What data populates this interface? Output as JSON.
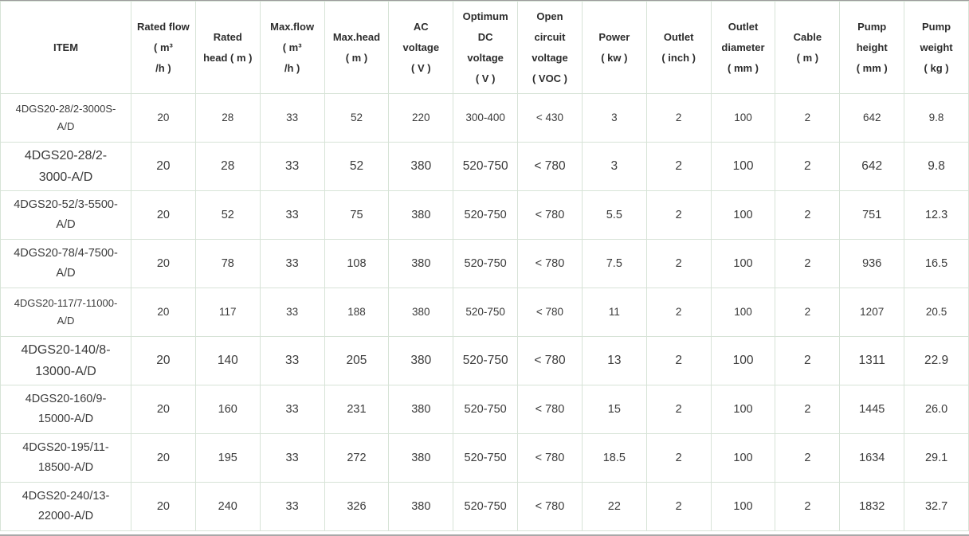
{
  "page": {
    "background_color": "#ffffff",
    "grid_line_color": "#d7e3d7",
    "header_text_color": "#2d2d2d",
    "body_text_color": "#3b3b3b"
  },
  "table": {
    "columns": [
      {
        "id": "item",
        "label_lines": [
          "ITEM"
        ]
      },
      {
        "id": "rated-flow",
        "label_lines": [
          "Rated flow",
          "( m³",
          "/h )"
        ]
      },
      {
        "id": "rated-head",
        "label_lines": [
          "Rated",
          "head ( m )"
        ]
      },
      {
        "id": "max-flow",
        "label_lines": [
          "Max.flow",
          "( m³",
          "/h )"
        ]
      },
      {
        "id": "max-head",
        "label_lines": [
          "Max.head",
          "( m )"
        ]
      },
      {
        "id": "ac-voltage",
        "label_lines": [
          "AC voltage",
          "( V )"
        ]
      },
      {
        "id": "optimum-dc-voltage",
        "label_lines": [
          "Optimum",
          "DC voltage",
          "( V )"
        ]
      },
      {
        "id": "open-circuit-voltage",
        "label_lines": [
          "Open",
          "circuit",
          "voltage",
          "( VOC )"
        ]
      },
      {
        "id": "power",
        "label_lines": [
          "Power",
          "( kw )"
        ]
      },
      {
        "id": "outlet",
        "label_lines": [
          "Outlet",
          "( inch )"
        ]
      },
      {
        "id": "outlet-diameter",
        "label_lines": [
          "Outlet",
          "diameter",
          "( mm )"
        ]
      },
      {
        "id": "cable",
        "label_lines": [
          "Cable",
          "( m )"
        ]
      },
      {
        "id": "pump-height",
        "label_lines": [
          "Pump",
          "height",
          "( mm )"
        ]
      },
      {
        "id": "pump-weight",
        "label_lines": [
          "Pump",
          "weight",
          "( kg )"
        ]
      }
    ],
    "rows": [
      {
        "item": "4DGS20-28/2-3000S-A/D",
        "values": [
          "20",
          "28",
          "33",
          "52",
          "220",
          "300-400",
          "< 430",
          "3",
          "2",
          "100",
          "2",
          "642",
          "9.8"
        ]
      },
      {
        "item": "4DGS20-28/2-3000-A/D",
        "values": [
          "20",
          "28",
          "33",
          "52",
          "380",
          "520-750",
          "< 780",
          "3",
          "2",
          "100",
          "2",
          "642",
          "9.8"
        ]
      },
      {
        "item": "4DGS20-52/3-5500-A/D",
        "values": [
          "20",
          "52",
          "33",
          "75",
          "380",
          "520-750",
          "< 780",
          "5.5",
          "2",
          "100",
          "2",
          "751",
          "12.3"
        ]
      },
      {
        "item": "4DGS20-78/4-7500-A/D",
        "values": [
          "20",
          "78",
          "33",
          "108",
          "380",
          "520-750",
          "< 780",
          "7.5",
          "2",
          "100",
          "2",
          "936",
          "16.5"
        ]
      },
      {
        "item": "4DGS20-117/7-11000-A/D",
        "values": [
          "20",
          "117",
          "33",
          "188",
          "380",
          "520-750",
          "< 780",
          "11",
          "2",
          "100",
          "2",
          "1207",
          "20.5"
        ]
      },
      {
        "item": "4DGS20-140/8-13000-A/D",
        "values": [
          "20",
          "140",
          "33",
          "205",
          "380",
          "520-750",
          "< 780",
          "13",
          "2",
          "100",
          "2",
          "1311",
          "22.9"
        ]
      },
      {
        "item": "4DGS20-160/9-15000-A/D",
        "values": [
          "20",
          "160",
          "33",
          "231",
          "380",
          "520-750",
          "< 780",
          "15",
          "2",
          "100",
          "2",
          "1445",
          "26.0"
        ]
      },
      {
        "item": "4DGS20-195/11-18500-A/D",
        "values": [
          "20",
          "195",
          "33",
          "272",
          "380",
          "520-750",
          "< 780",
          "18.5",
          "2",
          "100",
          "2",
          "1634",
          "29.1"
        ]
      },
      {
        "item": "4DGS20-240/13-22000-A/D",
        "values": [
          "20",
          "240",
          "33",
          "326",
          "380",
          "520-750",
          "< 780",
          "22",
          "2",
          "100",
          "2",
          "1832",
          "32.7"
        ]
      }
    ]
  }
}
